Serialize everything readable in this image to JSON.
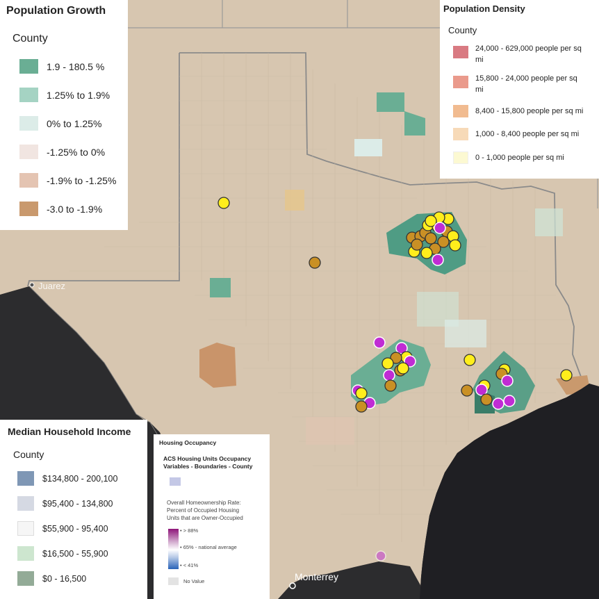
{
  "colors": {
    "water": "#1f1f23",
    "land": "#d7c6b0",
    "dfw": "#4f9c84",
    "marker_yellow": "#ffee1c",
    "marker_gold": "#c99025",
    "marker_purple": "#c02cd4"
  },
  "map_labels": {
    "juarez": "Juarez",
    "monterrey": "Monterrey"
  },
  "population_growth": {
    "title": "Population Growth",
    "subtitle": "County",
    "items": [
      {
        "label": "1.9 - 180.5 %",
        "color": "#6aae94"
      },
      {
        "label": "1.25% to 1.9%",
        "color": "#a5d3c3"
      },
      {
        "label": "0% to 1.25%",
        "color": "#dcece8"
      },
      {
        "label": "-1.25% to 0%",
        "color": "#f1e5e1"
      },
      {
        "label": "-1.9% to -1.25%",
        "color": "#e4c4b2"
      },
      {
        "label": "-3.0 to -1.9%",
        "color": "#c9996d"
      }
    ]
  },
  "population_density": {
    "title": "Population Density",
    "subtitle": "County",
    "items": [
      {
        "line1": "24,000 - 629,000 people per sq",
        "line2": "mi",
        "color": "#d97a82"
      },
      {
        "line1": "15,800 - 24,000 people per sq",
        "line2": "mi",
        "color": "#ea9a8c"
      },
      {
        "line1": "8,400 - 15,800 people per sq mi",
        "line2": "",
        "color": "#f1bb90"
      },
      {
        "line1": "1,000 - 8,400 people per sq mi",
        "line2": "",
        "color": "#f7dab8"
      },
      {
        "line1": "0 - 1,000 people per sq mi",
        "line2": "",
        "color": "#fcf9d2"
      }
    ]
  },
  "median_income": {
    "title": "Median Household Income",
    "subtitle": "County",
    "items": [
      {
        "label": "$134,800 - 200,100",
        "color": "#7f97b5"
      },
      {
        "label": "$95,400 - 134,800",
        "color": "#d5d9e3"
      },
      {
        "label": "$55,900 - 95,400",
        "color": "#f6f6f6"
      },
      {
        "label": "$16,500 - 55,900",
        "color": "#cde6cf"
      },
      {
        "label": "$0 - 16,500",
        "color": "#93ab97"
      }
    ]
  },
  "housing_occupancy": {
    "title": "Housing Occupancy",
    "layer_line1": "ACS Housing Units Occupancy",
    "layer_line2": "Variables - Boundaries - County",
    "layer_color": "#c4c8e6",
    "desc_line1": "Overall Homeownership Rate:",
    "desc_line2": "Percent of Occupied Housing",
    "desc_line3": "Units that are Owner-Occupied",
    "ramp_high": "> 88%",
    "ramp_mid": "65% - national average",
    "ramp_low": "< 41%",
    "ramp_top_color": "#8e1579",
    "ramp_mid_color": "#ffffff",
    "ramp_bottom_color": "#2a63b8",
    "no_value": "No Value",
    "no_value_color": "#e3e3e3"
  }
}
